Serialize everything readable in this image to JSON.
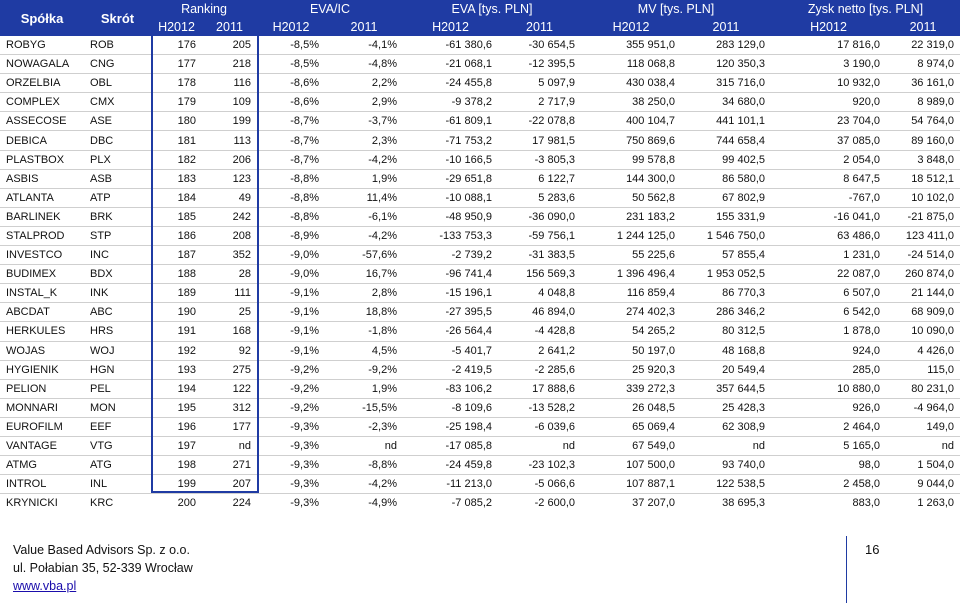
{
  "header": {
    "company": "Spółka",
    "ticker": "Skrót",
    "groups": [
      "Ranking",
      "EVA/IC",
      "EVA [tys. PLN]",
      "MV [tys. PLN]",
      "Zysk netto [tys. PLN]"
    ],
    "years": [
      "H2012",
      "2011",
      "H2012",
      "2011",
      "H2012",
      "2011",
      "H2012",
      "2011",
      "H2012",
      "2011"
    ]
  },
  "rows": [
    [
      "ROBYG",
      "ROB",
      "176",
      "205",
      "-8,5%",
      "-4,1%",
      "-61 380,6",
      "-30 654,5",
      "355 951,0",
      "283 129,0",
      "17 816,0",
      "22 319,0"
    ],
    [
      "NOWAGALA",
      "CNG",
      "177",
      "218",
      "-8,5%",
      "-4,8%",
      "-21 068,1",
      "-12 395,5",
      "118 068,8",
      "120 350,3",
      "3 190,0",
      "8 974,0"
    ],
    [
      "ORZELBIA",
      "OBL",
      "178",
      "116",
      "-8,6%",
      "2,2%",
      "-24 455,8",
      "5 097,9",
      "430 038,4",
      "315 716,0",
      "10 932,0",
      "36 161,0"
    ],
    [
      "COMPLEX",
      "CMX",
      "179",
      "109",
      "-8,6%",
      "2,9%",
      "-9 378,2",
      "2 717,9",
      "38 250,0",
      "34 680,0",
      "920,0",
      "8 989,0"
    ],
    [
      "ASSECOSE",
      "ASE",
      "180",
      "199",
      "-8,7%",
      "-3,7%",
      "-61 809,1",
      "-22 078,8",
      "400 104,7",
      "441 101,1",
      "23 704,0",
      "54 764,0"
    ],
    [
      "DEBICA",
      "DBC",
      "181",
      "113",
      "-8,7%",
      "2,3%",
      "-71 753,2",
      "17 981,5",
      "750 869,6",
      "744 658,4",
      "37 085,0",
      "89 160,0"
    ],
    [
      "PLASTBOX",
      "PLX",
      "182",
      "206",
      "-8,7%",
      "-4,2%",
      "-10 166,5",
      "-3 805,3",
      "99 578,8",
      "99 402,5",
      "2 054,0",
      "3 848,0"
    ],
    [
      "ASBIS",
      "ASB",
      "183",
      "123",
      "-8,8%",
      "1,9%",
      "-29 651,8",
      "6 122,7",
      "144 300,0",
      "86 580,0",
      "8 647,5",
      "18 512,1"
    ],
    [
      "ATLANTA",
      "ATP",
      "184",
      "49",
      "-8,8%",
      "11,4%",
      "-10 088,1",
      "5 283,6",
      "50 562,8",
      "67 802,9",
      "-767,0",
      "10 102,0"
    ],
    [
      "BARLINEK",
      "BRK",
      "185",
      "242",
      "-8,8%",
      "-6,1%",
      "-48 950,9",
      "-36 090,0",
      "231 183,2",
      "155 331,9",
      "-16 041,0",
      "-21 875,0"
    ],
    [
      "STALPROD",
      "STP",
      "186",
      "208",
      "-8,9%",
      "-4,2%",
      "-133 753,3",
      "-59 756,1",
      "1 244 125,0",
      "1 546 750,0",
      "63 486,0",
      "123 411,0"
    ],
    [
      "INVESTCO",
      "INC",
      "187",
      "352",
      "-9,0%",
      "-57,6%",
      "-2 739,2",
      "-31 383,5",
      "55 225,6",
      "57 855,4",
      "1 231,0",
      "-24 514,0"
    ],
    [
      "BUDIMEX",
      "BDX",
      "188",
      "28",
      "-9,0%",
      "16,7%",
      "-96 741,4",
      "156 569,3",
      "1 396 496,4",
      "1 953 052,5",
      "22 087,0",
      "260 874,0"
    ],
    [
      "INSTAL_K",
      "INK",
      "189",
      "111",
      "-9,1%",
      "2,8%",
      "-15 196,1",
      "4 048,8",
      "116 859,4",
      "86 770,3",
      "6 507,0",
      "21 144,0"
    ],
    [
      "ABCDAT",
      "ABC",
      "190",
      "25",
      "-9,1%",
      "18,8%",
      "-27 395,5",
      "46 894,0",
      "274 402,3",
      "286 346,2",
      "6 542,0",
      "68 909,0"
    ],
    [
      "HERKULES",
      "HRS",
      "191",
      "168",
      "-9,1%",
      "-1,8%",
      "-26 564,4",
      "-4 428,8",
      "54 265,2",
      "80 312,5",
      "1 878,0",
      "10 090,0"
    ],
    [
      "WOJAS",
      "WOJ",
      "192",
      "92",
      "-9,1%",
      "4,5%",
      "-5 401,7",
      "2 641,2",
      "50 197,0",
      "48 168,8",
      "924,0",
      "4 426,0"
    ],
    [
      "HYGIENIK",
      "HGN",
      "193",
      "275",
      "-9,2%",
      "-9,2%",
      "-2 419,5",
      "-2 285,6",
      "25 920,3",
      "20 549,4",
      "285,0",
      "115,0"
    ],
    [
      "PELION",
      "PEL",
      "194",
      "122",
      "-9,2%",
      "1,9%",
      "-83 106,2",
      "17 888,6",
      "339 272,3",
      "357 644,5",
      "10 880,0",
      "80 231,0"
    ],
    [
      "MONNARI",
      "MON",
      "195",
      "312",
      "-9,2%",
      "-15,5%",
      "-8 109,6",
      "-13 528,2",
      "26 048,5",
      "25 428,3",
      "926,0",
      "-4 964,0"
    ],
    [
      "EUROFILM",
      "EEF",
      "196",
      "177",
      "-9,3%",
      "-2,3%",
      "-25 198,4",
      "-6 039,6",
      "65 069,4",
      "62 308,9",
      "2 464,0",
      "149,0"
    ],
    [
      "VANTAGE",
      "VTG",
      "197",
      "nd",
      "-9,3%",
      "nd",
      "-17 085,8",
      "nd",
      "67 549,0",
      "nd",
      "5 165,0",
      "nd"
    ],
    [
      "ATMG",
      "ATG",
      "198",
      "271",
      "-9,3%",
      "-8,8%",
      "-24 459,8",
      "-23 102,3",
      "107 500,0",
      "93 740,0",
      "98,0",
      "1 504,0"
    ],
    [
      "INTROL",
      "INL",
      "199",
      "207",
      "-9,3%",
      "-4,2%",
      "-11 213,0",
      "-5 066,6",
      "107 887,1",
      "122 538,5",
      "2 458,0",
      "9 044,0"
    ],
    [
      "KRYNICKI",
      "KRC",
      "200",
      "224",
      "-9,3%",
      "-4,9%",
      "-7 085,2",
      "-2 600,0",
      "37 207,0",
      "38 695,3",
      "883,0",
      "1 263,0"
    ]
  ],
  "footer": {
    "company": "Value Based Advisors Sp. z o.o.",
    "address": "ul. Połabian 35, 52-339 Wrocław",
    "website": "www.vba.pl",
    "page_number": "16"
  },
  "colors": {
    "header_bg": "#1f3ba3",
    "header_text": "#ffffff",
    "link": "#1a0dab"
  }
}
